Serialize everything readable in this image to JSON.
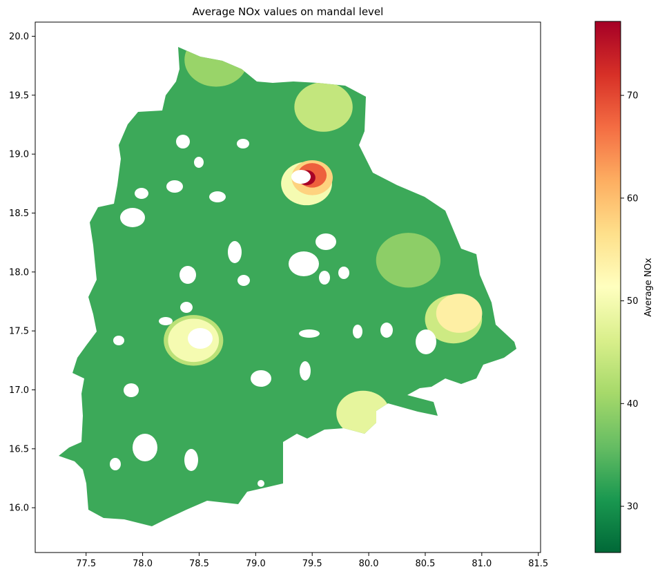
{
  "chart_data": {
    "type": "heatmap",
    "subtype": "choropleth",
    "title": "Average NOx values on mandal level",
    "xlabel": "",
    "ylabel": "",
    "xlim": [
      77.05,
      81.52
    ],
    "ylim": [
      15.62,
      20.12
    ],
    "x_ticks": [
      "77.5",
      "78.0",
      "78.5",
      "79.0",
      "79.5",
      "80.0",
      "80.5",
      "81.0",
      "81.5"
    ],
    "y_ticks": [
      "16.0",
      "16.5",
      "17.0",
      "17.5",
      "18.0",
      "18.5",
      "19.0",
      "19.5",
      "20.0"
    ],
    "grid": false,
    "colormap": "RdYlGn_r",
    "colorbar": {
      "label": "Average NOx",
      "range": [
        25.5,
        77.2
      ],
      "ticks": [
        "30",
        "40",
        "50",
        "60",
        "70"
      ],
      "placement": "right"
    },
    "hotspots": [
      {
        "lon": 79.45,
        "lat": 18.8,
        "value": 77
      },
      {
        "lon": 79.5,
        "lat": 18.82,
        "value": 68
      },
      {
        "lon": 79.5,
        "lat": 18.8,
        "value": 58
      },
      {
        "lon": 79.45,
        "lat": 18.75,
        "value": 50
      },
      {
        "lon": 78.45,
        "lat": 17.42,
        "value": 50
      },
      {
        "lon": 78.45,
        "lat": 17.42,
        "value": 43
      },
      {
        "lon": 80.8,
        "lat": 17.65,
        "value": 54
      },
      {
        "lon": 80.75,
        "lat": 17.6,
        "value": 45
      },
      {
        "lon": 79.95,
        "lat": 16.8,
        "value": 48
      },
      {
        "lon": 79.6,
        "lat": 19.4,
        "value": 44
      },
      {
        "lon": 78.65,
        "lat": 19.8,
        "value": 40
      },
      {
        "lon": 80.35,
        "lat": 18.1,
        "value": 39
      }
    ],
    "baseline_value": 33
  }
}
